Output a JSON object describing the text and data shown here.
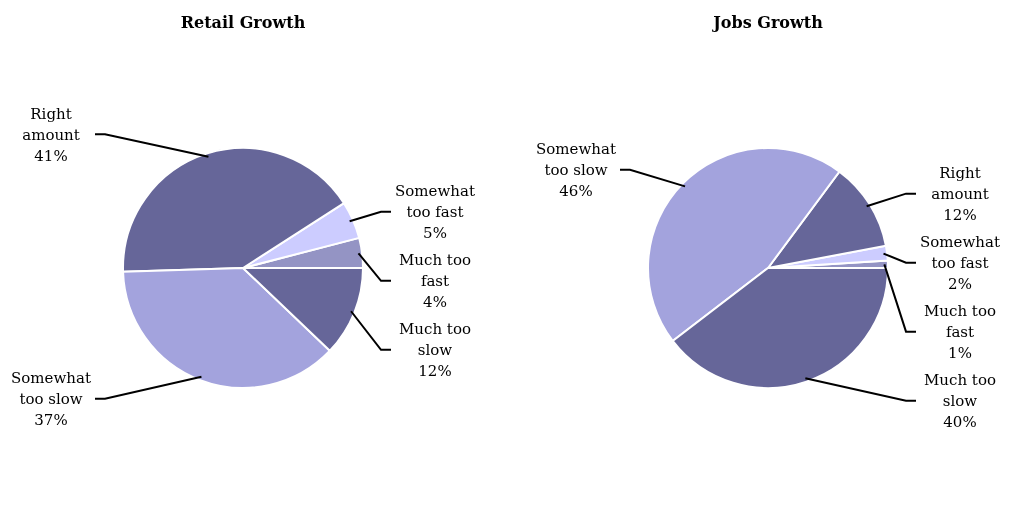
{
  "chart_data": [
    {
      "type": "pie",
      "title": "Retail Growth",
      "categories": [
        "Much too fast",
        "Somewhat too fast",
        "Right amount",
        "Somewhat too slow",
        "Much too slow"
      ],
      "values": [
        4,
        5,
        41,
        37,
        12
      ],
      "value_labels": [
        "4%",
        "5%",
        "41%",
        "37%",
        "12%"
      ],
      "colors": [
        "#9494c4",
        "#ccccff",
        "#666699",
        "#a3a3dd",
        "#666699"
      ],
      "legend": false
    },
    {
      "type": "pie",
      "title": "Jobs Growth",
      "categories": [
        "Much too fast",
        "Somewhat too fast",
        "Right amount",
        "Somewhat too slow",
        "Much too slow"
      ],
      "values": [
        1,
        2,
        12,
        46,
        40
      ],
      "value_labels": [
        "1%",
        "2%",
        "12%",
        "46%",
        "40%"
      ],
      "colors": [
        "#9494c4",
        "#ccccff",
        "#666699",
        "#a3a3dd",
        "#666699"
      ],
      "legend": false
    }
  ]
}
